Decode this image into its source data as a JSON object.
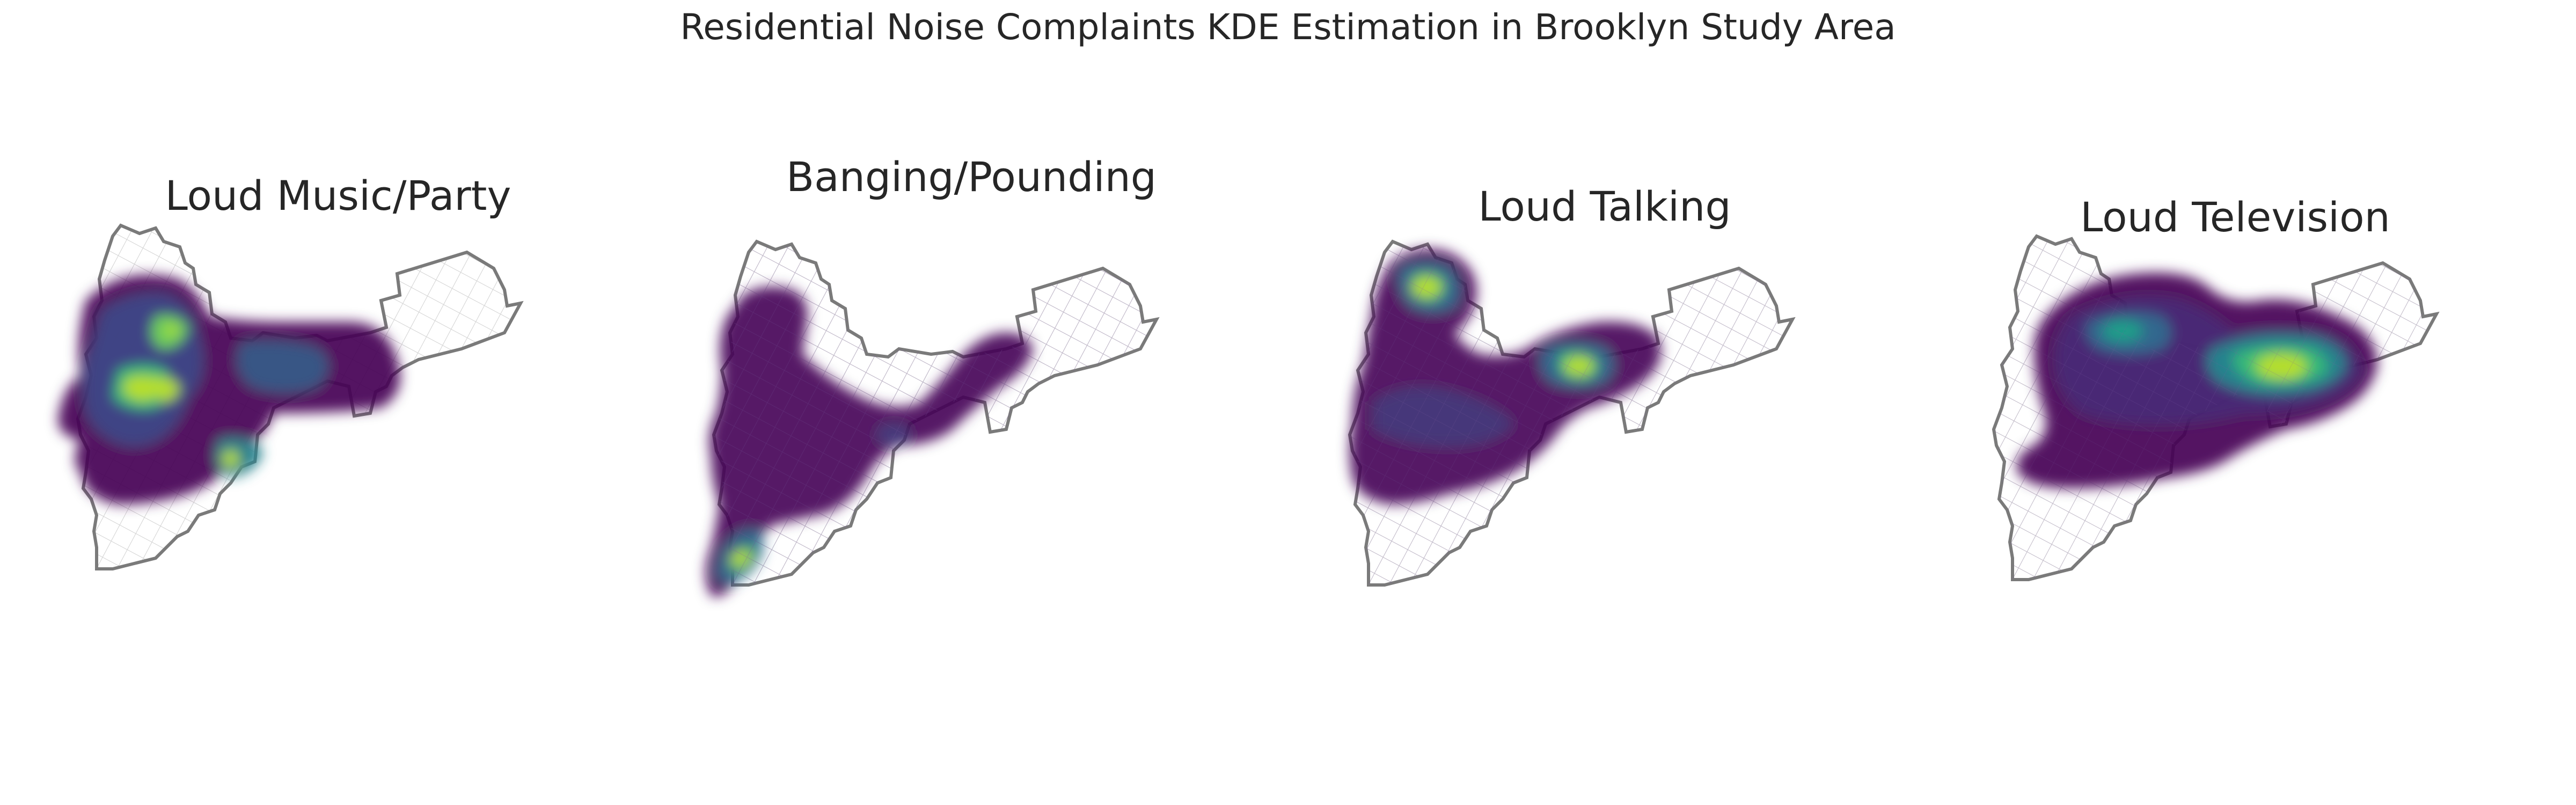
{
  "figure": {
    "title": "Residential Noise Complaints KDE Estimation in Brooklyn Study Area"
  },
  "colors": {
    "boundary": "#7a7a7a",
    "streets": "#d2d2d2",
    "viridis": [
      "#440154",
      "#482878",
      "#3e4989",
      "#31688e",
      "#26828e",
      "#1f9e89",
      "#35b779",
      "#6ece58",
      "#b5de2b",
      "#fde725"
    ]
  },
  "panels": [
    {
      "id": "music",
      "title": "Loud Music/Party"
    },
    {
      "id": "banging",
      "title": "Banging/Pounding"
    },
    {
      "id": "talking",
      "title": "Loud Talking"
    },
    {
      "id": "tv",
      "title": "Loud Television"
    }
  ]
}
